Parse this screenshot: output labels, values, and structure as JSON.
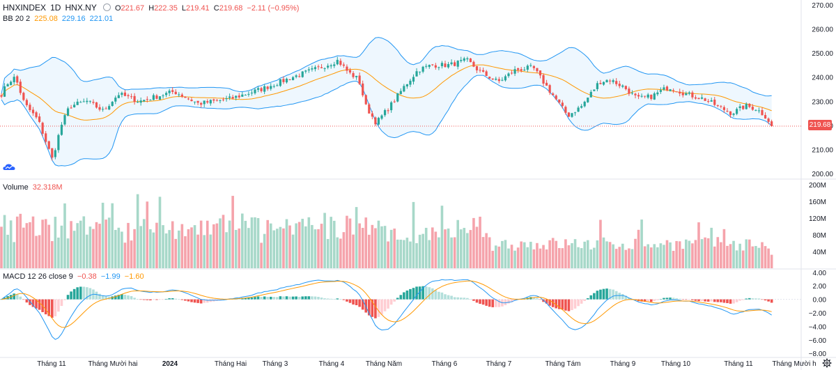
{
  "header": {
    "symbol": "HNXINDEX",
    "interval": "1D",
    "exchange": "HNX.NY",
    "open_label": "O",
    "open": "221.67",
    "high_label": "H",
    "high": "222.35",
    "low_label": "L",
    "low": "219.41",
    "close_label": "C",
    "close": "219.68",
    "change": "−2.11 (−0.95%)"
  },
  "bb_legend": {
    "name": "BB 20 2",
    "basis": "225.08",
    "upper": "229.16",
    "lower": "221.01"
  },
  "volume_legend": {
    "name": "Volume",
    "value": "32.318M"
  },
  "macd_legend": {
    "name": "MACD 12 26 close 9",
    "histogram": "−0.38",
    "macd": "−1.99",
    "signal": "−1.60"
  },
  "last_price_tag": "219.68",
  "price_axis": [
    "270.00",
    "260.00",
    "250.00",
    "240.00",
    "230.00",
    "220.00",
    "210.00",
    "200.00"
  ],
  "volume_axis": [
    "200M",
    "160M",
    "120M",
    "80M",
    "40M"
  ],
  "macd_axis": [
    "4.00",
    "2.00",
    "0.00",
    "−2.00",
    "−4.00",
    "−6.00",
    "−8.00"
  ],
  "time_axis": [
    "Tháng 11",
    "Tháng Mười hai",
    "2024",
    "Tháng Hai",
    "Tháng 3",
    "Tháng 4",
    "Tháng Năm",
    "Tháng 6",
    "Tháng 7",
    "Tháng Tám",
    "Tháng 9",
    "Tháng 10",
    "Tháng 11",
    "Tháng Mười h"
  ],
  "colors": {
    "up": "#26a69a",
    "down": "#ef5350",
    "up_volume": "#a7d8c9",
    "down_volume": "#f5a3ab",
    "bb_basis": "#ff9800",
    "bb_band": "#2196f3",
    "macd": "#2196f3",
    "signal": "#ff9800"
  },
  "icons": {
    "logo": "tradingview-cloud-icon",
    "settings": "gear-icon"
  },
  "chart_data": {
    "type": "candlestick",
    "price_range": [
      198,
      272
    ],
    "volume_range_millions": [
      0,
      205
    ],
    "macd_range": [
      -8.5,
      4.5
    ],
    "price_anchors": [
      {
        "x": 0,
        "price": 232
      },
      {
        "x": 12,
        "price": 238
      },
      {
        "x": 22,
        "price": 240
      },
      {
        "x": 35,
        "price": 229
      },
      {
        "x": 55,
        "price": 222
      },
      {
        "x": 65,
        "price": 214
      },
      {
        "x": 75,
        "price": 206
      },
      {
        "x": 88,
        "price": 220
      },
      {
        "x": 100,
        "price": 228
      },
      {
        "x": 125,
        "price": 230
      },
      {
        "x": 148,
        "price": 226
      },
      {
        "x": 170,
        "price": 233
      },
      {
        "x": 200,
        "price": 230
      },
      {
        "x": 250,
        "price": 234
      },
      {
        "x": 285,
        "price": 229
      },
      {
        "x": 330,
        "price": 231
      },
      {
        "x": 375,
        "price": 235
      },
      {
        "x": 420,
        "price": 240
      },
      {
        "x": 460,
        "price": 244
      },
      {
        "x": 485,
        "price": 247
      },
      {
        "x": 500,
        "price": 242
      },
      {
        "x": 515,
        "price": 239
      },
      {
        "x": 525,
        "price": 228
      },
      {
        "x": 540,
        "price": 221
      },
      {
        "x": 560,
        "price": 228
      },
      {
        "x": 580,
        "price": 236
      },
      {
        "x": 600,
        "price": 243
      },
      {
        "x": 620,
        "price": 245
      },
      {
        "x": 645,
        "price": 245
      },
      {
        "x": 670,
        "price": 247
      },
      {
        "x": 690,
        "price": 242
      },
      {
        "x": 715,
        "price": 238
      },
      {
        "x": 740,
        "price": 243
      },
      {
        "x": 765,
        "price": 244
      },
      {
        "x": 790,
        "price": 234
      },
      {
        "x": 815,
        "price": 224
      },
      {
        "x": 835,
        "price": 228
      },
      {
        "x": 860,
        "price": 238
      },
      {
        "x": 875,
        "price": 239
      },
      {
        "x": 895,
        "price": 236
      },
      {
        "x": 915,
        "price": 231
      },
      {
        "x": 935,
        "price": 232
      },
      {
        "x": 960,
        "price": 236
      },
      {
        "x": 985,
        "price": 233
      },
      {
        "x": 1010,
        "price": 231
      },
      {
        "x": 1030,
        "price": 228
      },
      {
        "x": 1050,
        "price": 225
      },
      {
        "x": 1070,
        "price": 228
      },
      {
        "x": 1085,
        "price": 227
      },
      {
        "x": 1098,
        "price": 224
      },
      {
        "x": 1108,
        "price": 220
      }
    ],
    "last_close": 219.68
  }
}
